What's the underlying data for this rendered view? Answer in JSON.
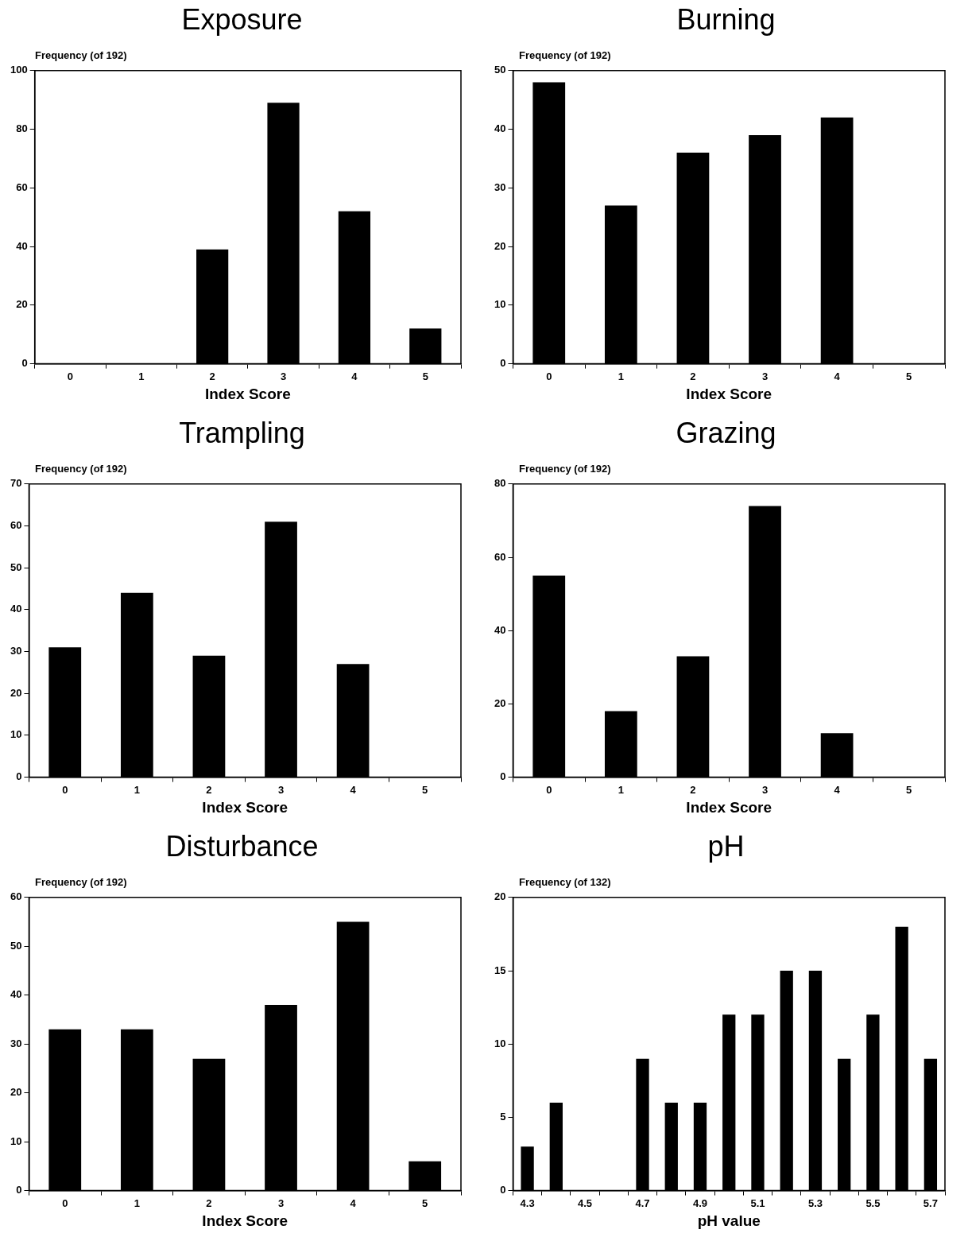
{
  "chart_data": [
    {
      "type": "bar",
      "title": "Exposure",
      "ylabel": "Frequency (of 192)",
      "xlabel": "Index Score",
      "categories": [
        "0",
        "1",
        "2",
        "3",
        "4",
        "5"
      ],
      "values": [
        0,
        0,
        39,
        89,
        52,
        12
      ],
      "color": "#000000",
      "ylim": [
        0,
        100
      ],
      "yticks": [
        0,
        20,
        40,
        60,
        80,
        100
      ],
      "grid": false,
      "legend": false
    },
    {
      "type": "bar",
      "title": "Burning",
      "ylabel": "Frequency (of 192)",
      "xlabel": "Index Score",
      "categories": [
        "0",
        "1",
        "2",
        "3",
        "4",
        "5"
      ],
      "values": [
        48,
        27,
        36,
        39,
        42,
        0
      ],
      "color": "#000000",
      "ylim": [
        0,
        50
      ],
      "yticks": [
        0,
        10,
        20,
        30,
        40,
        50
      ],
      "grid": false,
      "legend": false
    },
    {
      "type": "bar",
      "title": "Trampling",
      "ylabel": "Frequency (of 192)",
      "xlabel": "Index Score",
      "categories": [
        "0",
        "1",
        "2",
        "3",
        "4",
        "5"
      ],
      "values": [
        31,
        44,
        29,
        61,
        27,
        0
      ],
      "color": "#000000",
      "ylim": [
        0,
        70
      ],
      "yticks": [
        0,
        10,
        20,
        30,
        40,
        50,
        60,
        70
      ],
      "grid": false,
      "legend": false
    },
    {
      "type": "bar",
      "title": "Grazing",
      "ylabel": "Frequency (of 192)",
      "xlabel": "Index Score",
      "categories": [
        "0",
        "1",
        "2",
        "3",
        "4",
        "5"
      ],
      "values": [
        55,
        18,
        33,
        74,
        12,
        0
      ],
      "color": "#000000",
      "ylim": [
        0,
        80
      ],
      "yticks": [
        0,
        20,
        40,
        60,
        80
      ],
      "grid": false,
      "legend": false
    },
    {
      "type": "bar",
      "title": "Disturbance",
      "ylabel": "Frequency (of 192)",
      "xlabel": "Index Score",
      "categories": [
        "0",
        "1",
        "2",
        "3",
        "4",
        "5"
      ],
      "values": [
        33,
        33,
        27,
        38,
        55,
        6
      ],
      "color": "#000000",
      "ylim": [
        0,
        60
      ],
      "yticks": [
        0,
        10,
        20,
        30,
        40,
        50,
        60
      ],
      "grid": false,
      "legend": false
    },
    {
      "type": "bar",
      "title": "pH",
      "ylabel": "Frequency (of 132)",
      "xlabel": "pH value",
      "categories": [
        "4.3",
        null,
        "4.5",
        null,
        "4.7",
        null,
        "4.9",
        null,
        "5.1",
        null,
        "5.3",
        null,
        "5.5",
        null,
        "5.7"
      ],
      "values": [
        3,
        6,
        0,
        0,
        9,
        6,
        6,
        12,
        12,
        15,
        15,
        9,
        12,
        18,
        9
      ],
      "color": "#000000",
      "ylim": [
        0,
        20
      ],
      "yticks": [
        0,
        5,
        10,
        15,
        20
      ],
      "grid": false,
      "legend": false
    }
  ]
}
